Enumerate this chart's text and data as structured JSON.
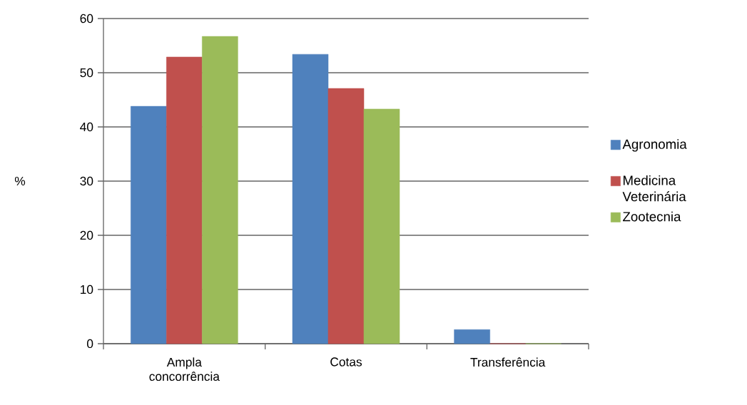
{
  "chart_data": {
    "type": "bar",
    "ylabel": "%",
    "categories": [
      "Ampla concorrência",
      "Cotas",
      "Transferência"
    ],
    "series": [
      {
        "name": "Agronomia",
        "color": "#4f81bd",
        "values": [
          43.8,
          53.4,
          2.6
        ]
      },
      {
        "name": "Medicina Veterinária",
        "color": "#c0504d",
        "values": [
          52.9,
          47.1,
          0
        ]
      },
      {
        "name": "Zootecnia",
        "color": "#9bbb59",
        "values": [
          56.7,
          43.3,
          0
        ]
      }
    ],
    "ylim": [
      0,
      60
    ],
    "yticks": [
      0,
      10,
      20,
      30,
      40,
      50,
      60
    ],
    "grid": "y",
    "legend": "right"
  }
}
